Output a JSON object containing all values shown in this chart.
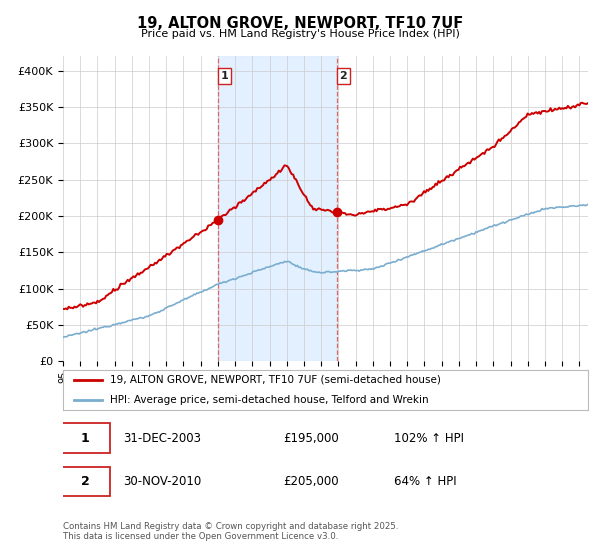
{
  "title": "19, ALTON GROVE, NEWPORT, TF10 7UF",
  "subtitle": "Price paid vs. HM Land Registry's House Price Index (HPI)",
  "ylabel_ticks": [
    "£0",
    "£50K",
    "£100K",
    "£150K",
    "£200K",
    "£250K",
    "£300K",
    "£350K",
    "£400K"
  ],
  "ylim": [
    0,
    420000
  ],
  "xlim_start": 1995.0,
  "xlim_end": 2025.5,
  "sale1_x": 2004.0,
  "sale1_y": 195000,
  "sale2_x": 2010.92,
  "sale2_y": 205000,
  "legend_entry1": "19, ALTON GROVE, NEWPORT, TF10 7UF (semi-detached house)",
  "legend_entry2": "HPI: Average price, semi-detached house, Telford and Wrekin",
  "footnote": "Contains HM Land Registry data © Crown copyright and database right 2025.\nThis data is licensed under the Open Government Licence v3.0.",
  "red_color": "#cc0000",
  "blue_color": "#7aadce",
  "bg_span_color": "#ddeeff",
  "plot_bg": "#ffffff",
  "grid_color": "#cccccc",
  "vline_color": "#dd6666",
  "ann_box_color": "#cc2222"
}
